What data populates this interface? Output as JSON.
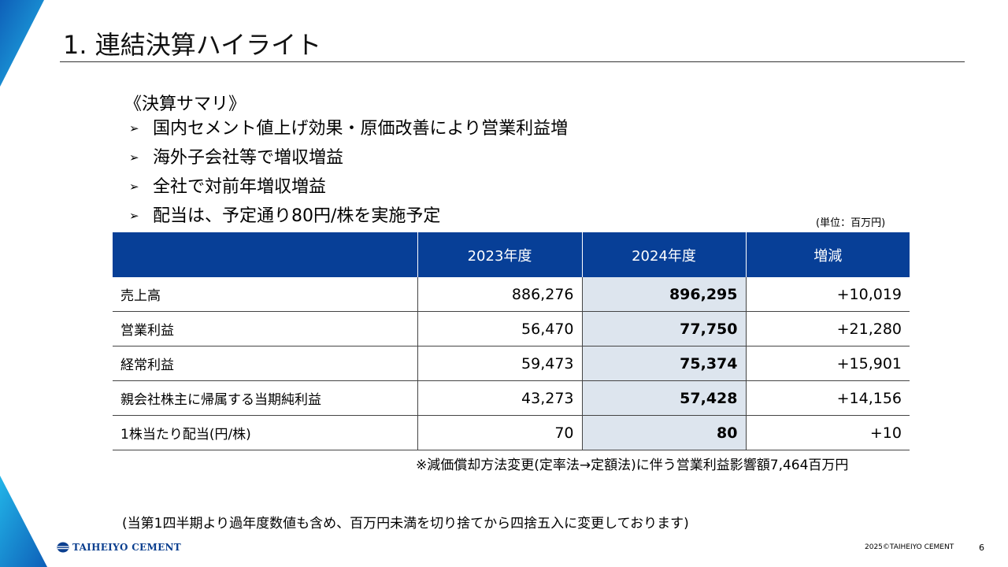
{
  "title": "1. 連結決算ハイライト",
  "summary": {
    "heading": "《決算サマリ》",
    "bullets": [
      "国内セメント値上げ効果・原価改善により営業利益増",
      "海外子会社等で増収増益",
      "全社で対前年増収増益",
      "配当は、予定通り80円/株を実施予定"
    ]
  },
  "table": {
    "unit": "(単位：百万円)",
    "headers": [
      "",
      "2023年度",
      "2024年度",
      "増減"
    ],
    "rows": [
      [
        "売上高",
        "886,276",
        "896,295",
        "+10,019"
      ],
      [
        "営業利益",
        "56,470",
        "77,750",
        "+21,280"
      ],
      [
        "経常利益",
        "59,473",
        "75,374",
        "+15,901"
      ],
      [
        "親会社株主に帰属する当期純利益",
        "43,273",
        "57,428",
        "+14,156"
      ],
      [
        "1株当たり配当(円/株)",
        "70",
        "80",
        "+10"
      ]
    ]
  },
  "footnote": "※減価償却方法変更(定率法→定額法)に伴う営業利益影響額7,464百万円",
  "note": "(当第1四半期より過年度数値も含め、百万円未満を切り捨てから四捨五入に変更しております)",
  "footer": {
    "logo_text": "TAIHEIYO CEMENT",
    "copyright": "2025©TAIHEIYO CEMENT",
    "page_number": "6"
  },
  "icons": {
    "bullet": "arrowhead-bullet-icon"
  },
  "colors": {
    "header_bg": "#073f97",
    "highlight_bg": "#dde5ee",
    "accent_cyan": "#1aa7e0"
  }
}
